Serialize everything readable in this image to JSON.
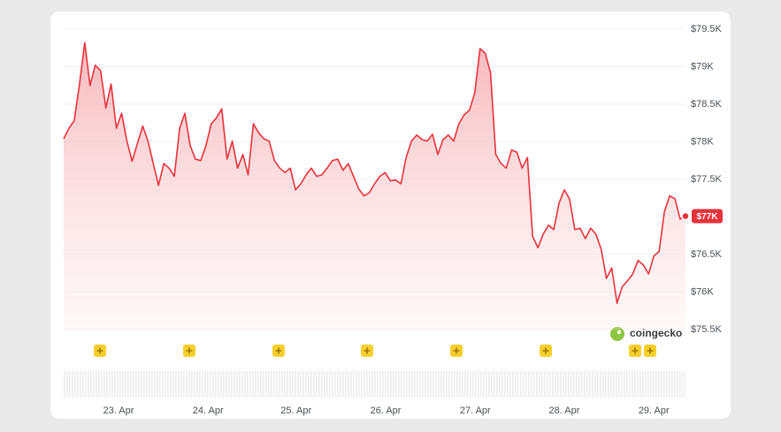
{
  "chart_data": {
    "type": "line",
    "color": "#e8323c",
    "values": [
      78040,
      78180,
      78280,
      78770,
      79320,
      78750,
      79020,
      78950,
      78450,
      78770,
      78180,
      78380,
      78010,
      77740,
      77980,
      78210,
      78010,
      77710,
      77420,
      77710,
      77650,
      77540,
      78180,
      78380,
      77950,
      77770,
      77750,
      77950,
      78240,
      78320,
      78440,
      77770,
      78010,
      77650,
      77830,
      77560,
      78240,
      78120,
      78040,
      78010,
      77750,
      77650,
      77590,
      77650,
      77360,
      77440,
      77560,
      77650,
      77540,
      77560,
      77650,
      77750,
      77770,
      77620,
      77710,
      77540,
      77370,
      77280,
      77320,
      77440,
      77540,
      77590,
      77480,
      77490,
      77440,
      77790,
      78010,
      78090,
      78030,
      78010,
      78100,
      77830,
      78030,
      78090,
      78010,
      78240,
      78360,
      78420,
      78650,
      79240,
      79180,
      78920,
      77830,
      77710,
      77650,
      77890,
      77860,
      77650,
      77790,
      76740,
      76590,
      76770,
      76890,
      76830,
      77180,
      77360,
      77240,
      76830,
      76850,
      76710,
      76850,
      76770,
      76570,
      76180,
      76320,
      75850,
      76070,
      76150,
      76240,
      76420,
      76360,
      76240,
      76480,
      76540,
      77070,
      77280,
      77240,
      76970,
      77010
    ],
    "xlim": [
      0,
      118
    ],
    "xticks": [
      {
        "value": 10.4,
        "label": "23. Apr"
      },
      {
        "value": 27.4,
        "label": "24. Apr"
      },
      {
        "value": 44.1,
        "label": "25. Apr"
      },
      {
        "value": 61.1,
        "label": "26. Apr"
      },
      {
        "value": 78.1,
        "label": "27. Apr"
      },
      {
        "value": 95.0,
        "label": "28. Apr"
      },
      {
        "value": 112.0,
        "label": "29. Apr"
      }
    ],
    "ylim": [
      75500,
      79500
    ],
    "yticks": [
      {
        "value": 75500,
        "label": "$75.5K"
      },
      {
        "value": 76000,
        "label": "$76K"
      },
      {
        "value": 76500,
        "label": "$76.5K"
      },
      {
        "value": 77500,
        "label": "$77.5K"
      },
      {
        "value": 78000,
        "label": "$78K"
      },
      {
        "value": 78500,
        "label": "$78.5K"
      },
      {
        "value": 79000,
        "label": "$79K"
      },
      {
        "value": 79500,
        "label": "$79.5K"
      }
    ],
    "current_price": {
      "value": 77010,
      "label": "$77K"
    },
    "grid": true,
    "watermark": "coingecko"
  }
}
